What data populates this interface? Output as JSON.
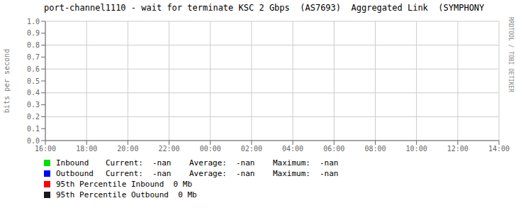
{
  "chart_data": {
    "type": "line",
    "title": "port-channel1110 - wait for terminate KSC 2 Gbps  (AS7693)  Aggregated Link  (SYMPHONY",
    "y_label": "bits per second",
    "categories": [
      "16:00",
      "18:00",
      "20:00",
      "22:00",
      "00:00",
      "02:00",
      "04:00",
      "06:00",
      "08:00",
      "10:00",
      "12:00",
      "14:00"
    ],
    "series": [
      {
        "name": "Inbound",
        "color": "#00e000",
        "values": [
          null,
          null,
          null,
          null,
          null,
          null,
          null,
          null,
          null,
          null,
          null,
          null
        ],
        "stats": [
          "Current:",
          "-nan",
          "Average:",
          "-nan",
          "Maximum:",
          "-nan"
        ]
      },
      {
        "name": "Outbound",
        "color": "#0000ff",
        "values": [
          null,
          null,
          null,
          null,
          null,
          null,
          null,
          null,
          null,
          null,
          null,
          null
        ],
        "stats": [
          "Current:",
          "-nan",
          "Average:",
          "-nan",
          "Maximum:",
          "-nan"
        ]
      },
      {
        "name": "95th Percentile Inbound  0 Mb",
        "color": "#ff0000",
        "values": [
          null,
          null,
          null,
          null,
          null,
          null,
          null,
          null,
          null,
          null,
          null,
          null
        ]
      },
      {
        "name": "95th Percentile Outbound  0 Mb",
        "color": "#1a1a1a",
        "values": [
          null,
          null,
          null,
          null,
          null,
          null,
          null,
          null,
          null,
          null,
          null,
          null
        ]
      }
    ],
    "ylim": [
      0,
      1
    ],
    "yticks": [
      {
        "value": 0,
        "label": "0.0"
      },
      0.1,
      0.2,
      0.3,
      0.4,
      0.5,
      0.6,
      0.7,
      0.8,
      0.9,
      {
        "value": 1,
        "label": "1.0"
      }
    ],
    "grid": true,
    "legend": "bottom",
    "annotations": [
      "RRDTOOL / TOBI OETIKER"
    ]
  }
}
